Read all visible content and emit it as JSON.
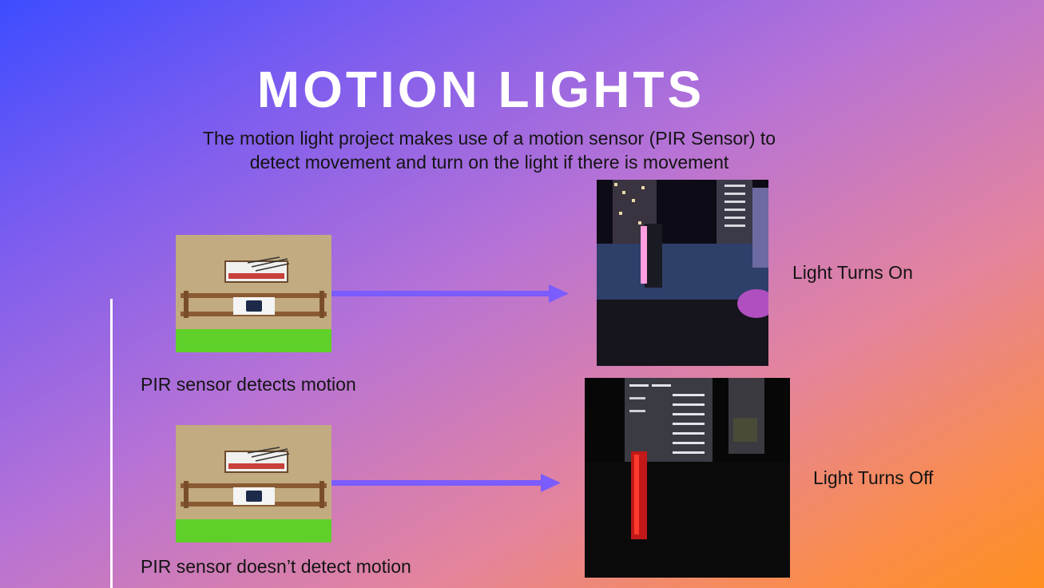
{
  "slide": {
    "title": "MOTION LIGHTS",
    "subtitle_line1": "The motion light project makes use of a motion sensor (PIR Sensor) to",
    "subtitle_line2": "detect movement and turn on the light if there is movement"
  },
  "row_detect": {
    "sensor_caption": "PIR sensor detects motion",
    "result_caption": "Light Turns On"
  },
  "row_no_detect": {
    "sensor_caption": "PIR sensor doesn’t detect motion",
    "result_caption": "Light Turns Off"
  },
  "colors": {
    "arrow": "#7b5cff",
    "title": "#ffffff",
    "light_on": "#ff66cc",
    "light_off": "#e01818"
  }
}
